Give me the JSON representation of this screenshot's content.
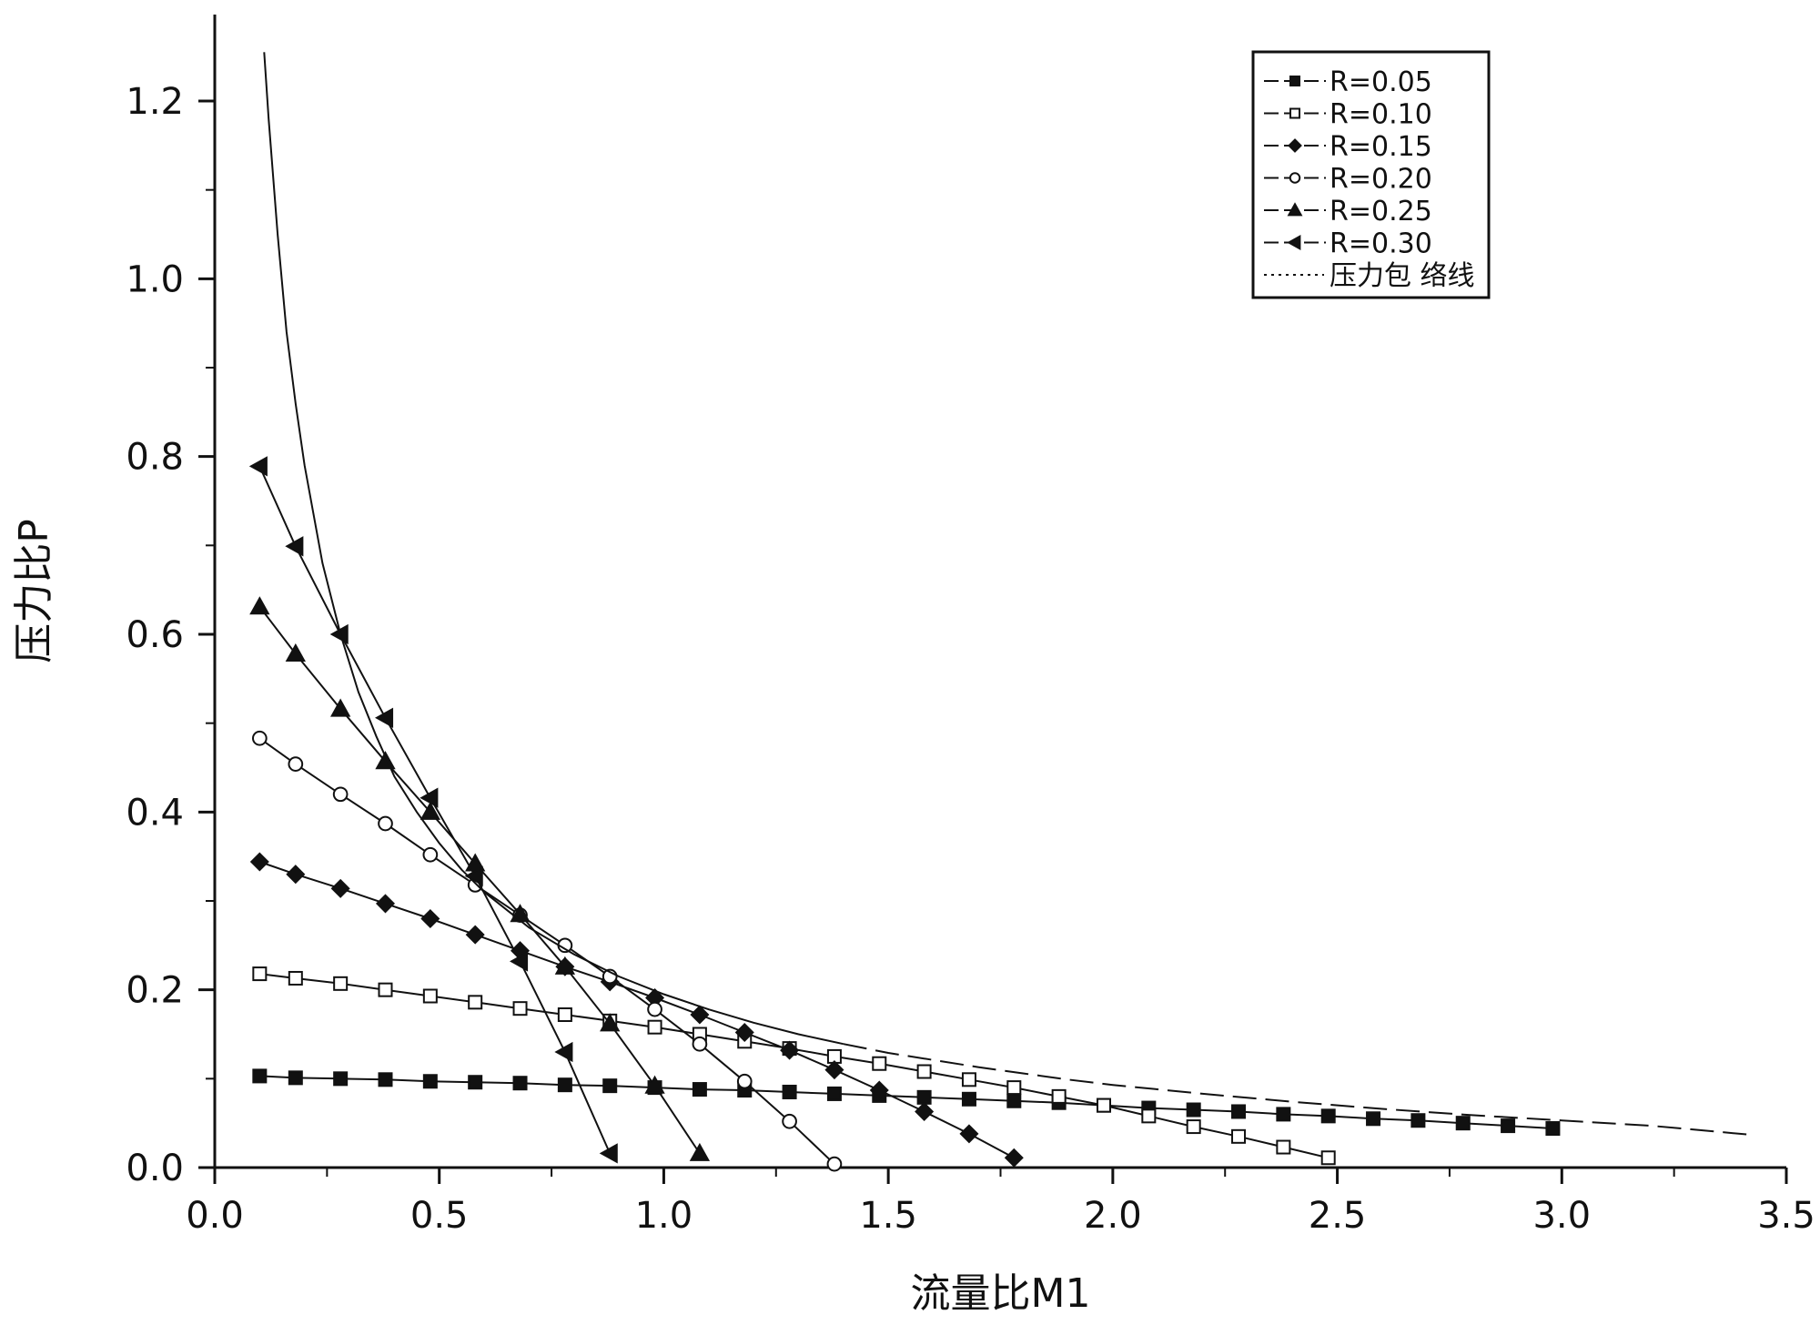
{
  "chart_data": {
    "type": "line",
    "title": "",
    "xlabel": "流量比M1",
    "ylabel": "压力比P",
    "xlim": [
      0.0,
      3.5
    ],
    "ylim": [
      0.0,
      1.3
    ],
    "x_ticks": [
      "0.0",
      "0.5",
      "1.0",
      "1.5",
      "2.0",
      "2.5",
      "3.0",
      "3.5"
    ],
    "y_ticks": [
      "0.0",
      "0.2",
      "0.4",
      "0.6",
      "0.8",
      "1.0",
      "1.2"
    ],
    "grid": false,
    "legend_position": "top-right",
    "series": [
      {
        "name": "R=0.05",
        "marker": "square-filled",
        "x": [
          0.1,
          0.18,
          0.28,
          0.38,
          0.48,
          0.58,
          0.68,
          0.78,
          0.88,
          0.98,
          1.08,
          1.18,
          1.28,
          1.38,
          1.48,
          1.58,
          1.68,
          1.78,
          1.88,
          1.98,
          2.08,
          2.18,
          2.28,
          2.38,
          2.48,
          2.58,
          2.68,
          2.78,
          2.88,
          2.98
        ],
        "y": [
          0.103,
          0.101,
          0.1,
          0.099,
          0.097,
          0.096,
          0.095,
          0.093,
          0.092,
          0.09,
          0.088,
          0.087,
          0.085,
          0.083,
          0.081,
          0.079,
          0.077,
          0.075,
          0.073,
          0.07,
          0.067,
          0.065,
          0.063,
          0.06,
          0.058,
          0.055,
          0.053,
          0.05,
          0.047,
          0.044
        ]
      },
      {
        "name": "R=0.10",
        "marker": "square-open",
        "x": [
          0.1,
          0.18,
          0.28,
          0.38,
          0.48,
          0.58,
          0.68,
          0.78,
          0.88,
          0.98,
          1.08,
          1.18,
          1.28,
          1.38,
          1.48,
          1.58,
          1.68,
          1.78,
          1.88,
          1.98,
          2.08,
          2.18,
          2.28,
          2.38,
          2.48
        ],
        "y": [
          0.218,
          0.213,
          0.207,
          0.2,
          0.193,
          0.186,
          0.179,
          0.172,
          0.165,
          0.158,
          0.15,
          0.142,
          0.134,
          0.125,
          0.117,
          0.108,
          0.099,
          0.09,
          0.08,
          0.07,
          0.058,
          0.046,
          0.035,
          0.023,
          0.011
        ]
      },
      {
        "name": "R=0.15",
        "marker": "diamond-filled",
        "x": [
          0.1,
          0.18,
          0.28,
          0.38,
          0.48,
          0.58,
          0.68,
          0.78,
          0.88,
          0.98,
          1.08,
          1.18,
          1.28,
          1.38,
          1.48,
          1.58,
          1.68,
          1.78
        ],
        "y": [
          0.344,
          0.33,
          0.314,
          0.297,
          0.28,
          0.262,
          0.244,
          0.226,
          0.209,
          0.191,
          0.172,
          0.152,
          0.132,
          0.11,
          0.087,
          0.063,
          0.038,
          0.011
        ]
      },
      {
        "name": "R=0.20",
        "marker": "circle-open",
        "x": [
          0.1,
          0.18,
          0.28,
          0.38,
          0.48,
          0.58,
          0.68,
          0.78,
          0.88,
          0.98,
          1.08,
          1.18,
          1.28,
          1.38
        ],
        "y": [
          0.483,
          0.454,
          0.42,
          0.387,
          0.352,
          0.318,
          0.284,
          0.25,
          0.215,
          0.178,
          0.139,
          0.097,
          0.052,
          0.004
        ]
      },
      {
        "name": "R=0.25",
        "marker": "triangle-up-filled",
        "x": [
          0.1,
          0.18,
          0.28,
          0.38,
          0.48,
          0.58,
          0.68,
          0.78,
          0.88,
          0.98,
          1.08
        ],
        "y": [
          0.631,
          0.578,
          0.516,
          0.457,
          0.4,
          0.342,
          0.285,
          0.226,
          0.162,
          0.092,
          0.016
        ]
      },
      {
        "name": "R=0.30",
        "marker": "triangle-left-filled",
        "x": [
          0.1,
          0.18,
          0.28,
          0.38,
          0.48,
          0.58,
          0.68,
          0.78,
          0.88
        ],
        "y": [
          0.789,
          0.699,
          0.6,
          0.506,
          0.416,
          0.328,
          0.232,
          0.13,
          0.016
        ]
      },
      {
        "name": "压力包 络线",
        "marker": "none",
        "style": "envelope",
        "x": [
          0.11,
          0.12,
          0.14,
          0.16,
          0.18,
          0.2,
          0.24,
          0.28,
          0.32,
          0.36,
          0.4,
          0.45,
          0.5,
          0.55,
          0.6,
          0.7,
          0.8,
          0.9,
          1.0,
          1.1,
          1.2,
          1.3,
          1.4,
          1.5,
          1.6,
          1.7,
          1.8,
          1.9,
          2.0,
          2.2,
          2.4,
          2.6,
          2.8,
          3.0,
          3.2,
          3.42
        ],
        "y": [
          1.255,
          1.18,
          1.05,
          0.94,
          0.86,
          0.79,
          0.68,
          0.6,
          0.535,
          0.485,
          0.44,
          0.4,
          0.365,
          0.335,
          0.31,
          0.27,
          0.24,
          0.215,
          0.195,
          0.178,
          0.163,
          0.15,
          0.139,
          0.129,
          0.121,
          0.113,
          0.106,
          0.099,
          0.093,
          0.083,
          0.074,
          0.066,
          0.059,
          0.053,
          0.047,
          0.037
        ]
      }
    ]
  }
}
